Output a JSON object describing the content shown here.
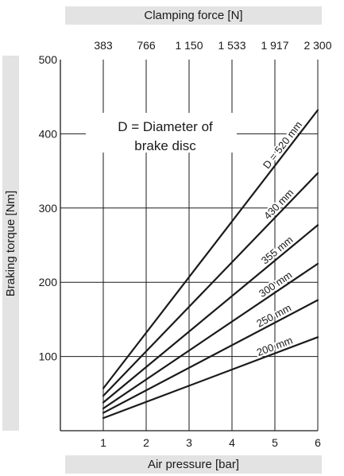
{
  "chart_data": {
    "type": "line",
    "top_axis_title": "Clamping force [N]",
    "xlabel": "Air pressure [bar]",
    "ylabel": "Braking torque [Nm]",
    "note_line1": "D = Diameter of",
    "note_line2": "brake disc",
    "xlim": [
      0,
      6
    ],
    "ylim": [
      0,
      500
    ],
    "x_ticks": [
      1,
      2,
      3,
      4,
      5,
      6
    ],
    "y_ticks": [
      100,
      200,
      300,
      400,
      500
    ],
    "top_ticks": [
      {
        "x": 1,
        "label": "383"
      },
      {
        "x": 2,
        "label": "766"
      },
      {
        "x": 3,
        "label": "1 150"
      },
      {
        "x": 4,
        "label": "1 533"
      },
      {
        "x": 5,
        "label": "1 917"
      },
      {
        "x": 6,
        "label": "2 300"
      }
    ],
    "grid": true,
    "series": [
      {
        "name": "D = 520 mm",
        "x": [
          1,
          6
        ],
        "y": [
          57,
          432
        ]
      },
      {
        "name": "430 mm",
        "x": [
          1,
          6
        ],
        "y": [
          47,
          347
        ]
      },
      {
        "name": "355 mm",
        "x": [
          1,
          6
        ],
        "y": [
          38,
          277
        ]
      },
      {
        "name": "300 mm",
        "x": [
          1,
          6
        ],
        "y": [
          30,
          225
        ]
      },
      {
        "name": "250 mm",
        "x": [
          1,
          6
        ],
        "y": [
          24,
          176
        ]
      },
      {
        "name": "200 mm",
        "x": [
          1,
          6
        ],
        "y": [
          17,
          126
        ]
      }
    ]
  }
}
